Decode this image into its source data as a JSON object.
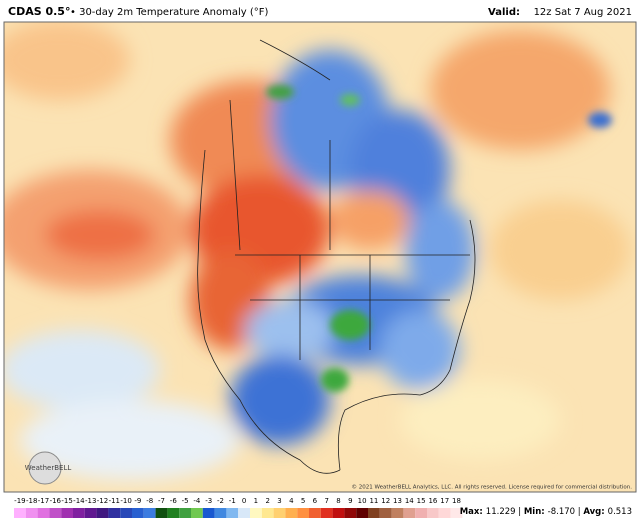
{
  "header": {
    "model": "CDAS 0.5°",
    "title": "• 30-day 2m Temperature Anomaly (°F)",
    "valid_label": "Valid:",
    "valid_time": "12z Sat 7 Aug 2021"
  },
  "map": {
    "logo": "WeatherBELL",
    "copyright": "© 2021 WeatherBELL Analytics, LLC. All rights reserved. License required for commercial distribution."
  },
  "stats": [
    {
      "label": "Max:",
      "value": "11.229"
    },
    {
      "label": "Min:",
      "value": "-8.170"
    },
    {
      "label": "Avg:",
      "value": "0.513"
    }
  ],
  "colorbar": {
    "ticks": [
      -19,
      -18,
      -17,
      -16,
      -15,
      -14,
      -13,
      -12,
      -11,
      -10,
      -9,
      -8,
      -7,
      -6,
      -5,
      -4,
      -3,
      -2,
      -1,
      0,
      1,
      2,
      3,
      4,
      5,
      6,
      7,
      8,
      9,
      10,
      11,
      12,
      13,
      14,
      15,
      16,
      17,
      18
    ],
    "colors": [
      "#ffb0ff",
      "#f090f0",
      "#e070e0",
      "#c050c8",
      "#a030b0",
      "#8020a0",
      "#601890",
      "#401880",
      "#3030a0",
      "#2848b8",
      "#2860d0",
      "#3c7ce0",
      "#105010",
      "#208020",
      "#40a040",
      "#70c850",
      "#1858d0",
      "#4088e0",
      "#80b8f0",
      "#d8e8f8",
      "#fff8c0",
      "#ffe890",
      "#ffd070",
      "#ffb050",
      "#ff9040",
      "#f06030",
      "#e03020",
      "#c01010",
      "#900808",
      "#600000",
      "#804020",
      "#a06040",
      "#c08060",
      "#e0a090",
      "#f0b0b0",
      "#f8c8c8",
      "#ffd8d8",
      "#ffe8e8"
    ]
  }
}
